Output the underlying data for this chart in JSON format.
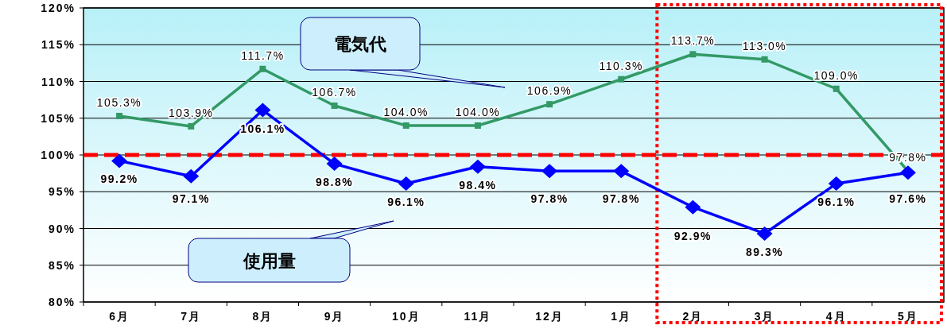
{
  "chart_data": {
    "type": "line",
    "categories": [
      "6月",
      "7月",
      "8月",
      "9月",
      "10月",
      "11月",
      "12月",
      "1月",
      "2月",
      "3月",
      "4月",
      "5月"
    ],
    "series": [
      {
        "name": "電気代",
        "color": "#339966",
        "marker": "square",
        "values": [
          105.3,
          103.9,
          111.7,
          106.7,
          104.0,
          104.0,
          106.9,
          110.3,
          113.7,
          113.0,
          109.0,
          97.8
        ],
        "value_labels": [
          "105.3%",
          "103.9%",
          "111.7%",
          "106.7%",
          "104.0%",
          "104.0%",
          "106.9%",
          "110.3%",
          "113.7%",
          "113.0%",
          "109.0%",
          "97.8%"
        ]
      },
      {
        "name": "使用量",
        "color": "#0000ff",
        "marker": "diamond",
        "values": [
          99.2,
          97.1,
          106.1,
          98.8,
          96.1,
          98.4,
          97.8,
          97.8,
          92.9,
          89.3,
          96.1,
          97.6
        ],
        "value_labels": [
          "99.2%",
          "97.1%",
          "106.1%",
          "98.8%",
          "96.1%",
          "98.4%",
          "97.8%",
          "97.8%",
          "92.9%",
          "89.3%",
          "96.1%",
          "97.6%"
        ]
      }
    ],
    "ylim": [
      80,
      120
    ],
    "yticks": [
      {
        "value": 80,
        "label": "80%"
      },
      {
        "value": 85,
        "label": "85%"
      },
      {
        "value": 90,
        "label": "90%"
      },
      {
        "value": 95,
        "label": "95%"
      },
      {
        "value": 100,
        "label": "100%"
      },
      {
        "value": 105,
        "label": "105%"
      },
      {
        "value": 110,
        "label": "110%"
      },
      {
        "value": 115,
        "label": "115%"
      },
      {
        "value": 120,
        "label": "120%"
      }
    ],
    "grid": "y",
    "line_style": "solid",
    "ref_lines": [
      {
        "axis": "y",
        "value": 100,
        "color": "#ff0000",
        "line_style": "dashed"
      }
    ]
  }
}
